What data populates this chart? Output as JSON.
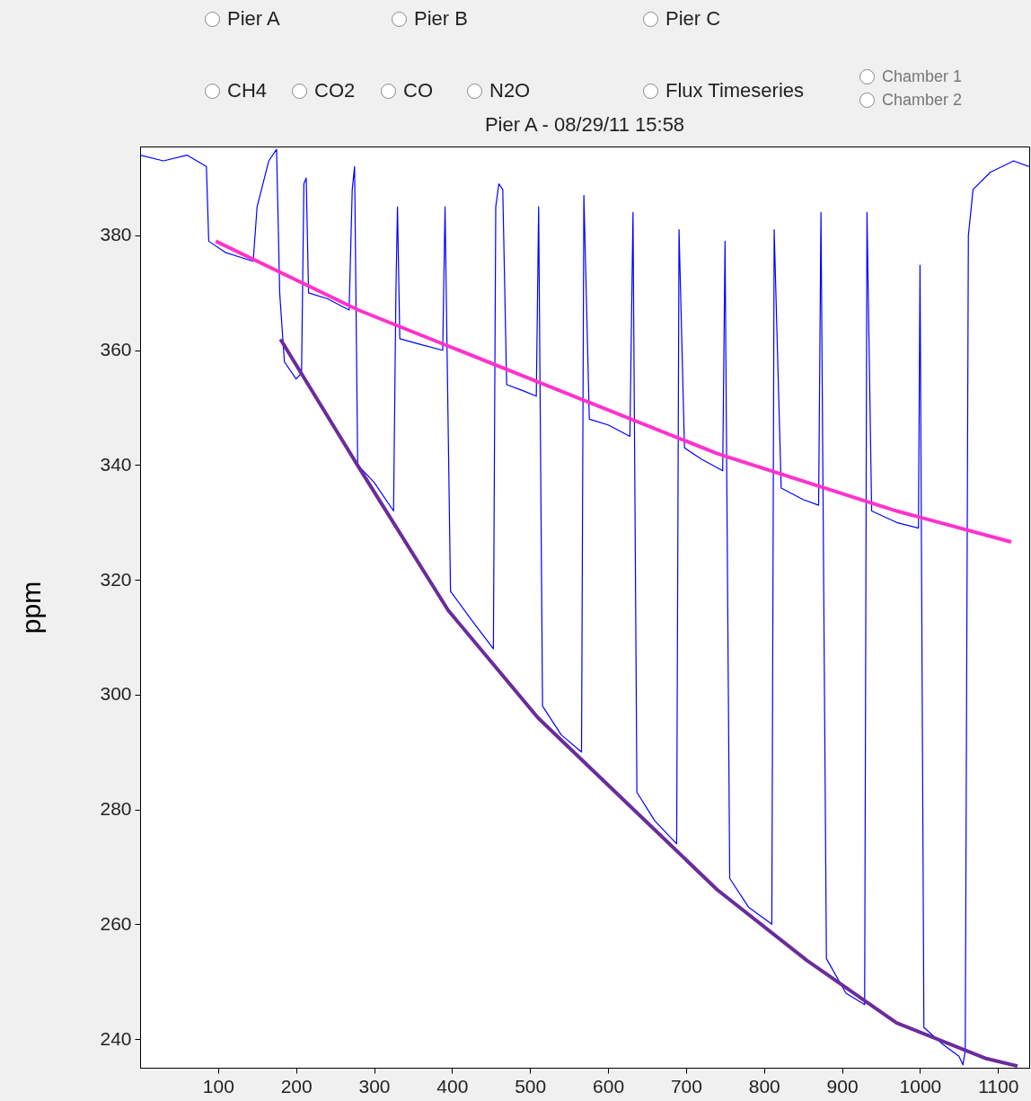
{
  "chart_data": {
    "type": "line",
    "title": "Pier A - 08/29/11 15:58",
    "ylabel": "ppm",
    "annotations": [
      "Pier A",
      "Pier B",
      "Pier C",
      "CH4",
      "CO2",
      "CO",
      "N2O",
      "Flux Timeseries",
      "Chamber 1",
      "Chamber 2"
    ],
    "xlim": [
      0,
      1140
    ],
    "xticks": [
      100,
      200,
      300,
      400,
      500,
      600,
      700,
      800,
      900,
      1000,
      1100
    ],
    "ylim": [
      235,
      395.5
    ],
    "yticks": [
      240,
      260,
      280,
      300,
      320,
      340,
      360,
      380
    ],
    "series": [
      {
        "color": "#0000ff",
        "x": [
          0,
          30,
          60,
          85,
          88,
          110,
          145,
          150,
          165,
          175,
          179,
          185,
          200,
          207,
          210,
          213,
          216,
          240,
          268,
          272,
          275,
          279,
          300,
          325,
          328,
          330,
          333,
          360,
          388,
          391,
          398,
          425,
          453,
          456,
          460,
          465,
          470,
          490,
          508,
          511,
          516,
          540,
          566,
          569,
          576,
          600,
          628,
          632,
          637,
          660,
          688,
          691,
          698,
          720,
          747,
          750,
          756,
          780,
          810,
          813,
          822,
          850,
          870,
          873,
          880,
          905,
          929,
          932,
          938,
          970,
          998,
          1000,
          1005,
          1030,
          1050,
          1055,
          1058,
          1062,
          1068,
          1090,
          1120,
          1140
        ],
        "values": [
          394,
          393,
          394,
          392,
          379,
          377,
          375.5,
          385,
          393,
          395,
          370,
          358,
          355,
          356,
          389,
          390,
          370,
          369,
          367,
          388,
          392,
          340,
          337,
          332,
          370,
          385,
          362,
          361,
          360,
          385,
          318,
          313,
          308,
          385,
          389,
          388,
          354,
          353,
          352,
          385,
          298,
          293,
          290,
          387,
          348,
          347,
          345,
          384,
          283,
          278,
          274,
          381,
          343,
          341,
          339,
          379,
          268,
          263,
          260,
          381,
          336,
          334,
          333,
          384,
          254,
          248,
          246,
          384,
          332,
          330,
          329,
          374.8,
          242,
          239,
          237,
          235.5,
          238,
          380,
          388,
          391,
          393,
          392
        ]
      },
      {
        "color": "#ff33cc",
        "x": [
          97,
          280,
          510,
          740,
          970,
          1117
        ],
        "values": [
          379,
          367,
          354.5,
          342,
          332,
          326.6
        ]
      },
      {
        "color": "#6a2c9c",
        "x": [
          180,
          280,
          395,
          510,
          625,
          740,
          855,
          970,
          1085,
          1125
        ],
        "values": [
          361.9,
          339.7,
          314.7,
          296,
          281,
          266,
          253.7,
          242.8,
          236.6,
          235.3
        ]
      }
    ]
  }
}
